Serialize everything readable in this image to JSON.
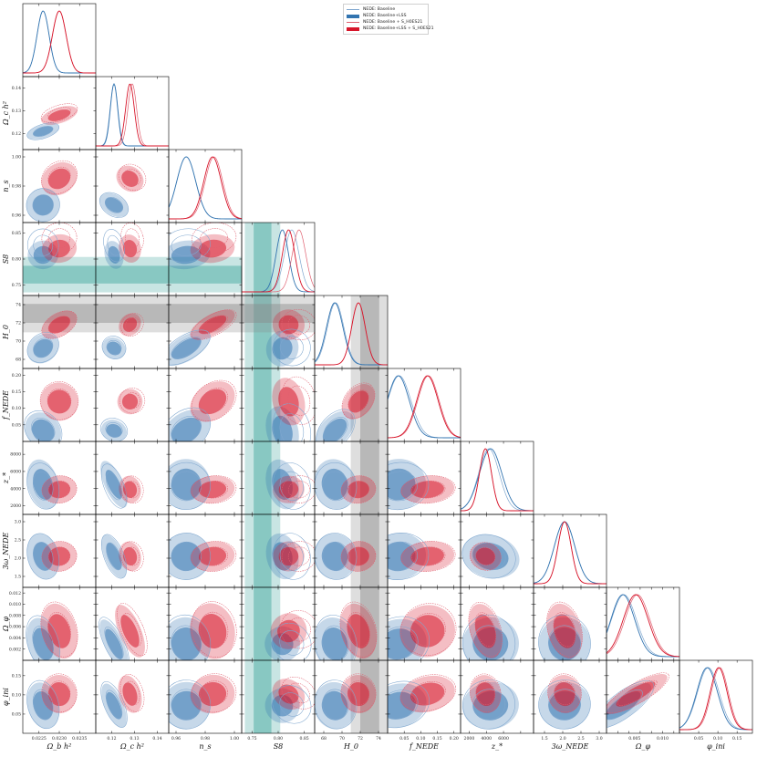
{
  "chart_data": {
    "type": "corner",
    "parameters": [
      {
        "xlabel": "Ω_b h²",
        "ylabel": "",
        "ticks": [
          "0.0225",
          "0.0230",
          "0.0235"
        ],
        "range": [
          0.0221,
          0.0239
        ]
      },
      {
        "xlabel": "Ω_c h²",
        "ylabel": "Ω_c h²",
        "ticks": [
          "0.12",
          "0.13",
          "0.14"
        ],
        "range": [
          0.113,
          0.145
        ]
      },
      {
        "xlabel": "n_s",
        "ylabel": "n_s",
        "ticks": [
          "0.96",
          "0.98",
          "1.00"
        ],
        "range": [
          0.955,
          1.005
        ]
      },
      {
        "xlabel": "S8",
        "ylabel": "S8",
        "ticks": [
          "0.75",
          "0.80",
          "0.85"
        ],
        "range": [
          0.73,
          0.87
        ]
      },
      {
        "xlabel": "H_0",
        "ylabel": "H_0",
        "ticks": [
          "68",
          "70",
          "72",
          "74"
        ],
        "range": [
          67,
          75
        ]
      },
      {
        "xlabel": "f_NEDE",
        "ylabel": "f_NEDE",
        "ticks": [
          "0.05",
          "0.10",
          "0.15",
          "0.20"
        ],
        "range": [
          0.0,
          0.22
        ]
      },
      {
        "xlabel": "z_*",
        "ylabel": "z_*",
        "ticks": [
          "2000",
          "4000",
          "6000",
          "8000"
        ],
        "range": [
          1000,
          9500
        ]
      },
      {
        "xlabel": "3ω_NEDE",
        "ylabel": "3ω_NEDE",
        "ticks": [
          "1.5",
          "2.0",
          "2.5",
          "3.0"
        ],
        "range": [
          1.2,
          3.2
        ]
      },
      {
        "xlabel": "Ω_φ",
        "ylabel": "Ω_φ",
        "ticks": [
          "0.002",
          "0.004",
          "0.006",
          "0.008",
          "0.010",
          "0.012"
        ],
        "range": [
          0.0,
          0.013
        ]
      },
      {
        "xlabel": "φ_ini",
        "ylabel": "φ_ini",
        "ticks": [
          "0.05",
          "0.10",
          "0.15"
        ],
        "range": [
          0.0,
          0.19
        ]
      }
    ],
    "xticks_shown": {
      "0": [
        "0.0225",
        "0.0230",
        "0.0235"
      ],
      "1": [
        "0.12",
        "0.13",
        "0.14"
      ],
      "2": [
        "0.96",
        "0.98",
        "1.00"
      ],
      "3": [
        "0.75",
        "0.80",
        "0.85"
      ],
      "4": [
        "68",
        "70",
        "72",
        "74"
      ],
      "5": [
        "0.05",
        "0.10",
        "0.15",
        "0.20"
      ],
      "6": [
        "2000",
        "4000",
        "6000"
      ],
      "7": [
        "1.5",
        "2.0",
        "2.5",
        "3.0"
      ],
      "8": [
        "0.005",
        "0.010"
      ],
      "9": [
        "0.05",
        "0.10",
        "0.15"
      ]
    },
    "series": [
      {
        "name": "NEDE: Baseline",
        "style": "line",
        "color": "#7fa7cf",
        "means": [
          0.0226,
          0.121,
          0.967,
          0.826,
          69.3,
          0.035,
          4300,
          2.05,
          0.0031,
          0.075
        ],
        "sigmas": [
          0.00015,
          0.0017,
          0.0065,
          0.014,
          0.9,
          0.035,
          1200,
          0.28,
          0.0022,
          0.028
        ]
      },
      {
        "name": "NEDE: Baseline+LSS",
        "style": "filled",
        "color": "#3274b0",
        "means": [
          0.0226,
          0.121,
          0.967,
          0.808,
          69.2,
          0.032,
          4500,
          2.05,
          0.0029,
          0.072
        ],
        "sigmas": [
          0.00015,
          0.0016,
          0.0065,
          0.012,
          0.9,
          0.033,
          1300,
          0.28,
          0.0021,
          0.027
        ]
      },
      {
        "name": "NEDE: Baseline+S_H0ES21",
        "style": "line",
        "color": "#e06070",
        "means": [
          0.023,
          0.129,
          0.986,
          0.84,
          71.8,
          0.123,
          3900,
          2.05,
          0.0055,
          0.105
        ],
        "sigmas": [
          0.00017,
          0.0019,
          0.006,
          0.013,
          0.75,
          0.032,
          700,
          0.18,
          0.0022,
          0.022
        ]
      },
      {
        "name": "NEDE: Baseline+LSS+S_H0ES21",
        "style": "filled",
        "color": "#d7152a",
        "means": [
          0.023,
          0.128,
          0.985,
          0.82,
          71.8,
          0.12,
          3900,
          2.05,
          0.0052,
          0.102
        ],
        "sigmas": [
          0.00017,
          0.0019,
          0.006,
          0.012,
          0.75,
          0.032,
          700,
          0.18,
          0.0022,
          0.022
        ]
      }
    ],
    "prior_bands": [
      {
        "parameter": "S8",
        "center": 0.77,
        "sigma": 0.017,
        "color": "#3aa39a"
      },
      {
        "parameter": "H_0",
        "center": 73.04,
        "sigma": 1.04,
        "color": "#8a8a8a"
      }
    ],
    "legend": {
      "placement": "top-center",
      "labels": [
        "NEDE: Baseline",
        "NEDE: Baseline+LSS",
        "NEDE: Baseline + S_H0ES21",
        "NEDE: Baseline+LSS + S_H0ES21"
      ]
    }
  }
}
